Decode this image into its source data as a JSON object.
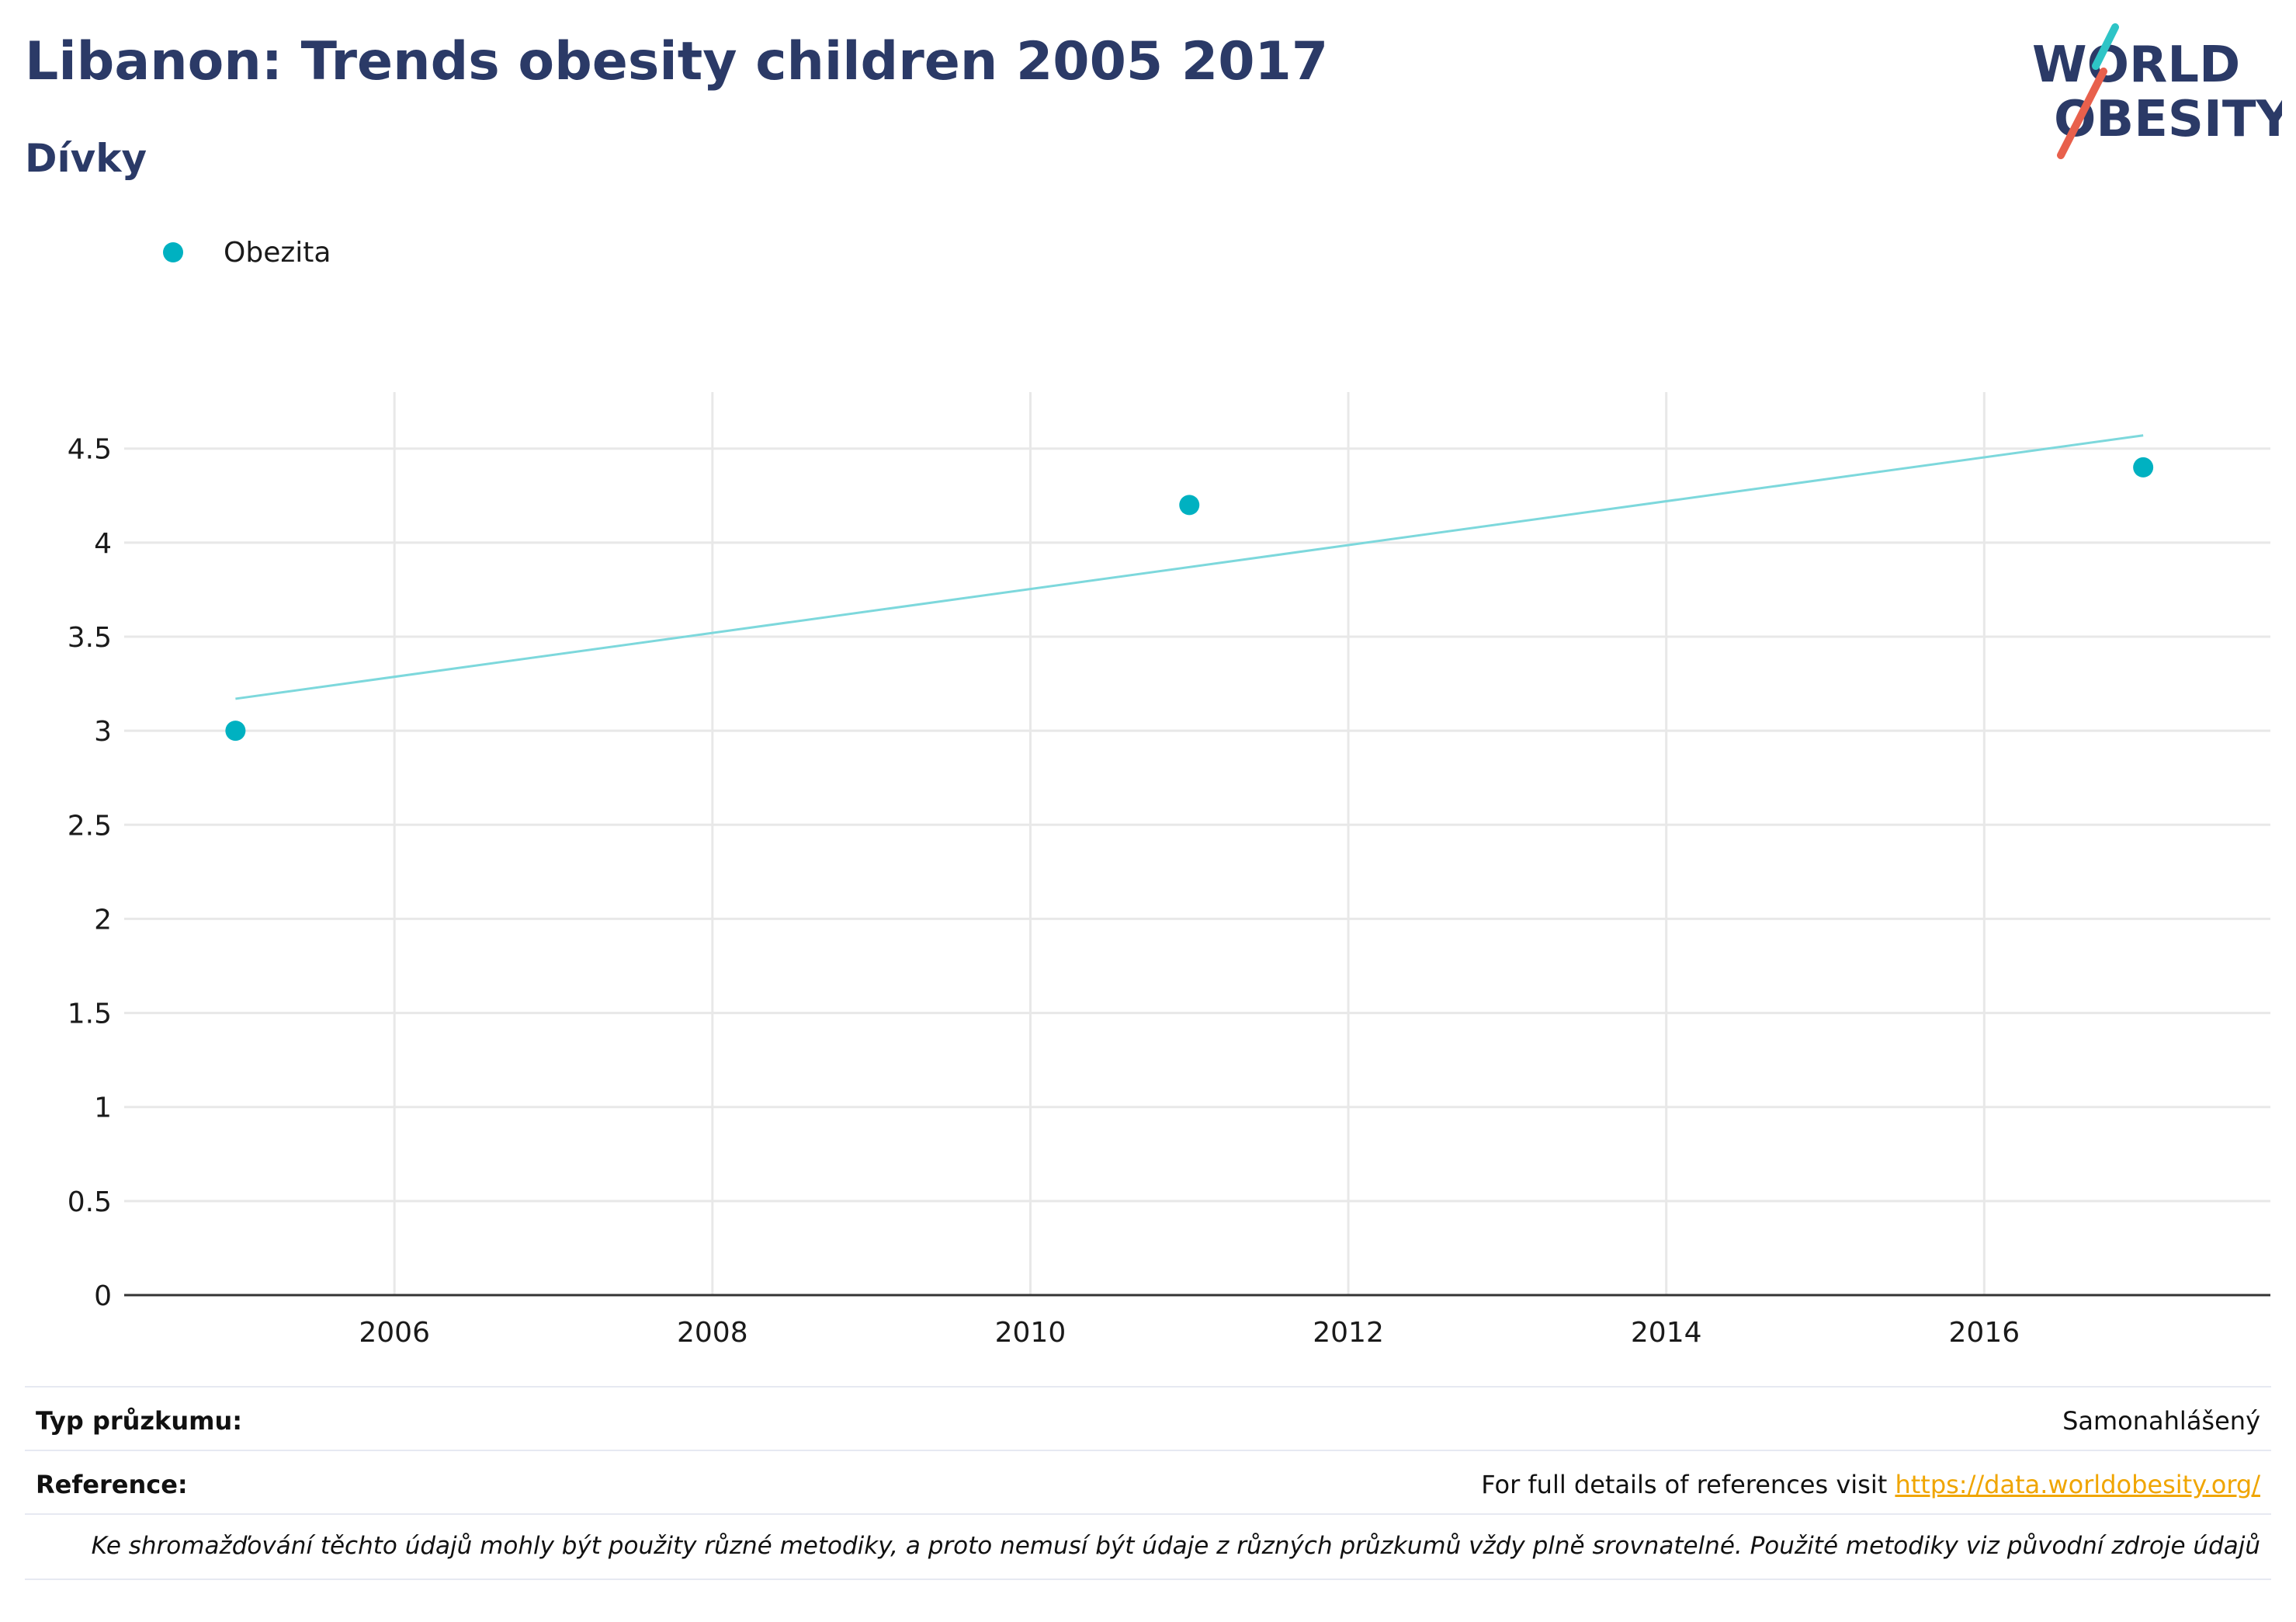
{
  "header": {
    "title": "Libanon: Trends obesity children 2005 2017",
    "subtitle": "Dívky"
  },
  "logo": {
    "line1": "WORLD",
    "line2": "OBESITY",
    "colors": {
      "text": "#2b3a67",
      "teal": "#2ec4c6",
      "red": "#e8604c"
    }
  },
  "legend": {
    "label": "Obezita",
    "color": "#00b1c1"
  },
  "chart_data": {
    "type": "scatter",
    "x_ticks": [
      2006,
      2008,
      2010,
      2012,
      2014,
      2016
    ],
    "y_ticks": [
      0,
      0.5,
      1,
      1.5,
      2,
      2.5,
      3,
      3.5,
      4,
      4.5
    ],
    "y_tick_labels": [
      "0",
      "0.5",
      "1",
      "1.5",
      "2",
      "2.5",
      "3",
      "3.5",
      "4",
      "4.5"
    ],
    "xlim": [
      2004.3,
      2017.8
    ],
    "ylim": [
      0,
      4.8
    ],
    "grid": true,
    "series": [
      {
        "name": "Obezita",
        "color": "#00b1c1",
        "x": [
          2005,
          2011,
          2017
        ],
        "y": [
          3.0,
          4.2,
          4.4
        ]
      }
    ],
    "trendline": {
      "color": "#7dd8dc",
      "x": [
        2005,
        2017
      ],
      "y": [
        3.17,
        4.57
      ]
    }
  },
  "footer": {
    "survey_label": "Typ průzkumu:",
    "survey_value": "Samonahlášený",
    "reference_label": "Reference:",
    "reference_text": "For full details of references visit ",
    "reference_link": "https://data.worldobesity.org/",
    "note": "Ke shromažďování těchto údajů mohly být použity různé metodiky, a proto nemusí být údaje z různých průzkumů vždy plně srovnatelné. Použité metodiky viz původní zdroje údajů"
  }
}
